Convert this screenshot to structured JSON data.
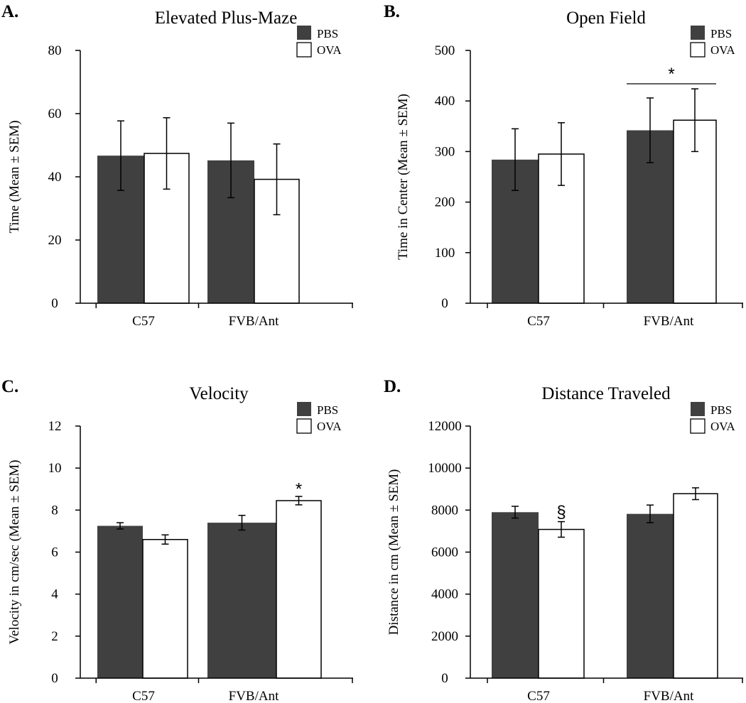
{
  "colors": {
    "pbs": "#404040",
    "ova": "#ffffff",
    "axis": "#000000"
  },
  "chart_data": [
    {
      "type": "bar",
      "panel": "A.",
      "title": "Elevated Plus-Maze",
      "ylabel": "Time (Mean ± SEM)",
      "ylim": [
        0,
        80
      ],
      "yticks": [
        "0",
        "20",
        "40",
        "60",
        "80"
      ],
      "categories": [
        "C57",
        "FVB/Ant"
      ],
      "series": [
        {
          "name": "PBS",
          "values": [
            46.7,
            45.2
          ],
          "errors": [
            11,
            11.8
          ]
        },
        {
          "name": "OVA",
          "values": [
            47.4,
            39.2
          ],
          "errors": [
            11.3,
            11.2
          ]
        }
      ],
      "legend": [
        "PBS",
        "OVA"
      ],
      "legend_position": "top-right",
      "annotations": []
    },
    {
      "type": "bar",
      "panel": "B.",
      "title": "Open Field",
      "ylabel": "Time in Center (Mean ± SEM)",
      "ylim": [
        0,
        500
      ],
      "yticks": [
        "0",
        "100",
        "200",
        "300",
        "400",
        "500"
      ],
      "categories": [
        "C57",
        "FVB/Ant"
      ],
      "series": [
        {
          "name": "PBS",
          "values": [
            284,
            342
          ],
          "errors": [
            61,
            64
          ]
        },
        {
          "name": "OVA",
          "values": [
            295,
            362
          ],
          "errors": [
            62,
            62
          ]
        }
      ],
      "legend": [
        "PBS",
        "OVA"
      ],
      "legend_position": "top-right",
      "annotations": [
        {
          "text": "*",
          "category": 1,
          "bracket": true,
          "y": 434
        }
      ]
    },
    {
      "type": "bar",
      "panel": "C.",
      "title": "Velocity",
      "ylabel": "Velocity in cm/sec (Mean ± SEM)",
      "ylim": [
        0,
        12
      ],
      "yticks": [
        "0",
        "2",
        "4",
        "6",
        "8",
        "10",
        "12"
      ],
      "categories": [
        "C57",
        "FVB/Ant"
      ],
      "series": [
        {
          "name": "PBS",
          "values": [
            7.25,
            7.4
          ],
          "errors": [
            0.15,
            0.35
          ]
        },
        {
          "name": "OVA",
          "values": [
            6.6,
            8.45
          ],
          "errors": [
            0.22,
            0.2
          ]
        }
      ],
      "legend": [
        "PBS",
        "OVA"
      ],
      "legend_position": "top-right",
      "annotations": [
        {
          "text": "*",
          "category": 1,
          "series": 1,
          "y": 8.8
        }
      ]
    },
    {
      "type": "bar",
      "panel": "D.",
      "title": "Distance Traveled",
      "ylabel": "Distance in cm (Mean ± SEM)",
      "ylim": [
        0,
        12000
      ],
      "yticks": [
        "0",
        "2000",
        "4000",
        "6000",
        "8000",
        "10000",
        "12000"
      ],
      "categories": [
        "C57",
        "FVB/Ant"
      ],
      "series": [
        {
          "name": "PBS",
          "values": [
            7900,
            7820
          ],
          "errors": [
            280,
            420
          ]
        },
        {
          "name": "OVA",
          "values": [
            7080,
            8780
          ],
          "errors": [
            370,
            280
          ]
        }
      ],
      "legend": [
        "PBS",
        "OVA"
      ],
      "legend_position": "top-right",
      "annotations": [
        {
          "text": "§",
          "category": 0,
          "series": 1,
          "y": 7700
        }
      ]
    }
  ]
}
